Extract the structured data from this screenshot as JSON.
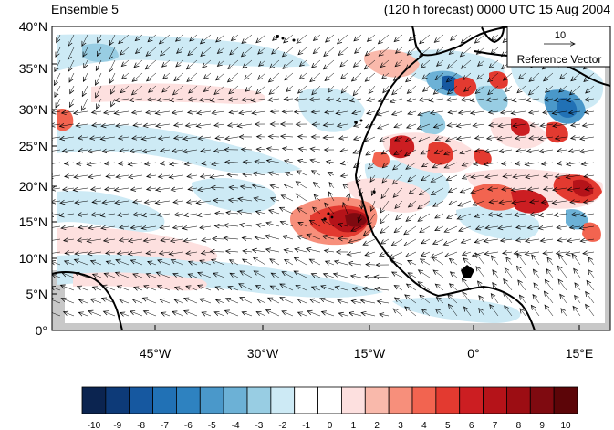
{
  "title_left": "Ensemble 5",
  "title_right": "(120 h forecast) 0000 UTC 15 Aug 2004",
  "lat_labels": [
    "40°N",
    "35°N",
    "30°N",
    "25°N",
    "20°N",
    "15°N",
    "10°N",
    "5°N",
    "0°"
  ],
  "lon_labels": [
    "45°W",
    "30°W",
    "15°W",
    "0°",
    "15°E"
  ],
  "reference_vector": {
    "value": "10",
    "label": "Reference Vector"
  },
  "colorbar": {
    "labels": [
      "-10",
      "-9",
      "-8",
      "-7",
      "-6",
      "-5",
      "-4",
      "-3",
      "-2",
      "-1",
      "0",
      "1",
      "2",
      "3",
      "4",
      "5",
      "6",
      "7",
      "8",
      "9",
      "10"
    ],
    "colors": [
      "#0b2450",
      "#0d3a78",
      "#1658a0",
      "#2171b5",
      "#2e82c0",
      "#4a98ca",
      "#6cb1d6",
      "#98cde3",
      "#cdeaf5",
      "#ffffff",
      "#ffffff",
      "#fde0df",
      "#f9b9ab",
      "#f78f7b",
      "#f26450",
      "#e33a30",
      "#cc1e22",
      "#b51319",
      "#9c0d13",
      "#7f0a10",
      "#5c0508"
    ]
  },
  "map_style": {
    "land_mask_color": "#c8c8c8",
    "coastline_color": "#000000"
  }
}
